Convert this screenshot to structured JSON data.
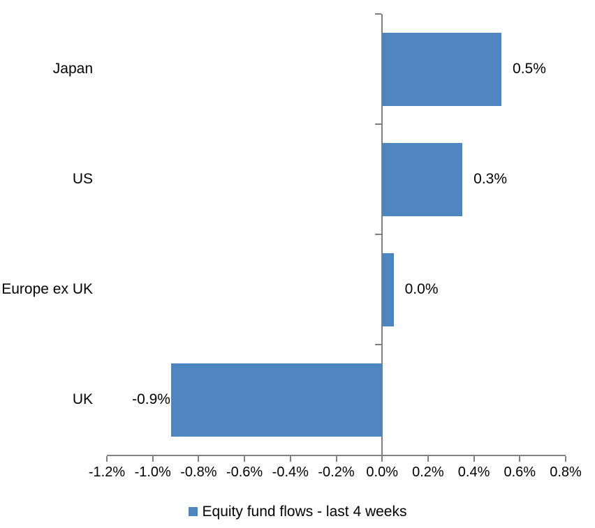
{
  "chart_data": {
    "type": "bar",
    "orientation": "horizontal",
    "title": "",
    "xlabel": "",
    "ylabel": "",
    "categories": [
      "Japan",
      "US",
      "Europe ex UK",
      "UK"
    ],
    "values": [
      0.5,
      0.3,
      0.0,
      -0.9
    ],
    "value_labels": [
      "0.5%",
      "0.3%",
      "0.0%",
      "-0.9%"
    ],
    "plot_values": [
      0.52,
      0.35,
      0.05,
      -0.92
    ],
    "unit": "%",
    "xlim": [
      -1.2,
      0.8
    ],
    "tick_step": 0.2,
    "tick_labels": [
      "-1.2%",
      "-1.0%",
      "-0.8%",
      "-0.6%",
      "-0.4%",
      "-0.2%",
      "0.0%",
      "0.2%",
      "0.4%",
      "0.6%",
      "0.8%"
    ],
    "grid": false,
    "legend_position": "bottom",
    "legend": [
      {
        "label": "Equity fund flows - last 4 weeks",
        "color": "#4D86BF"
      }
    ],
    "colors": {
      "bar": "#4D86BF",
      "axis": "#808080",
      "text": "#000000",
      "background": "#FFFFFF"
    }
  }
}
